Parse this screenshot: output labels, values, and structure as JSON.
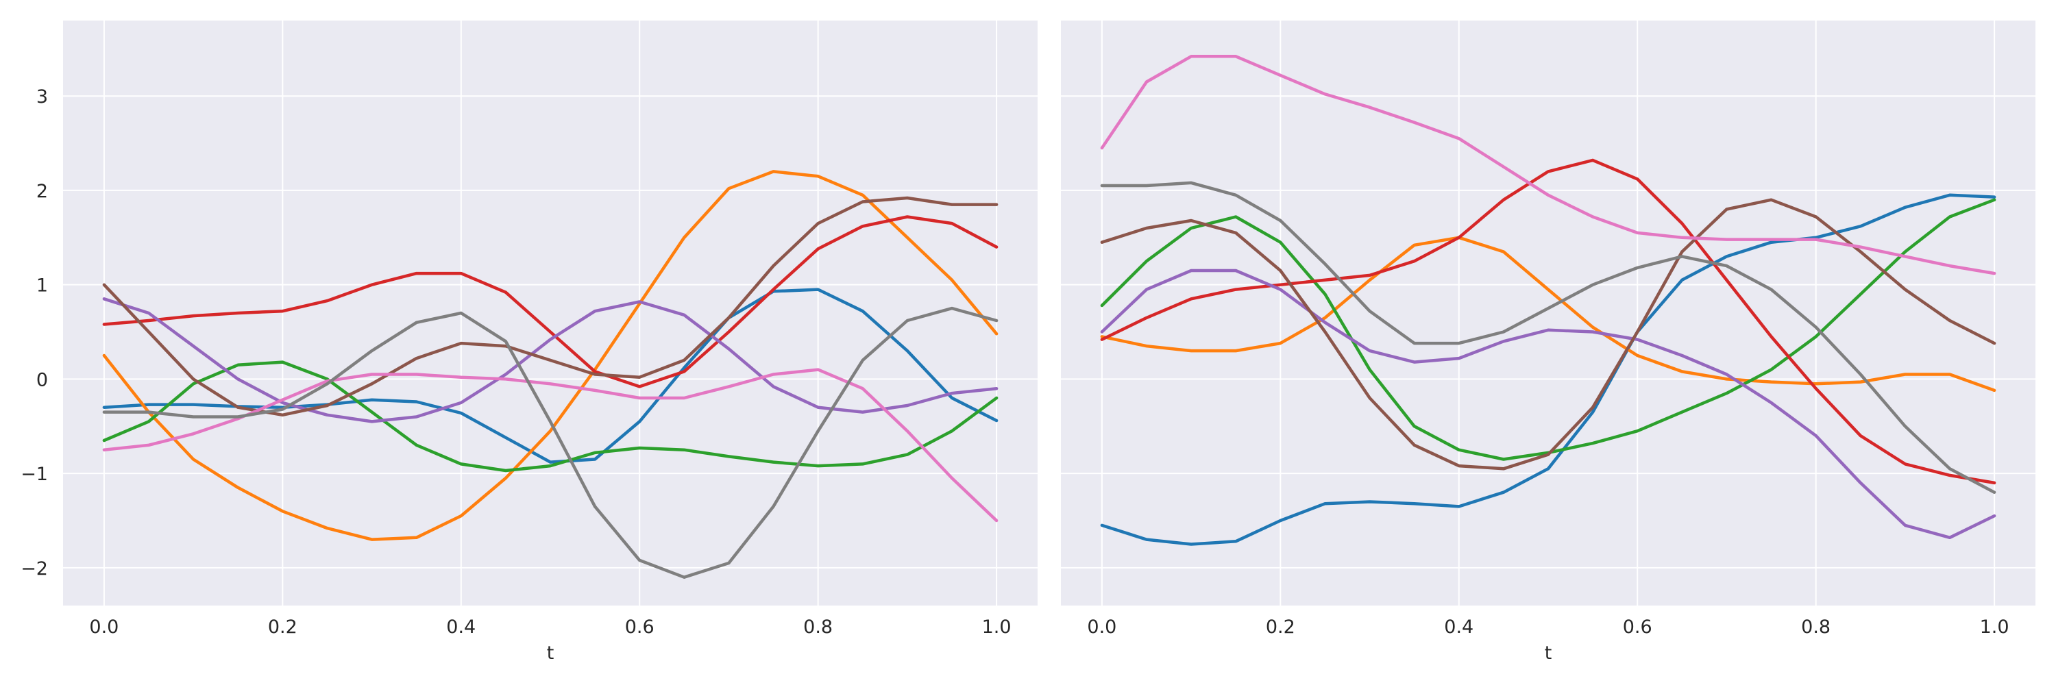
{
  "chart_data": [
    {
      "type": "line",
      "xlabel": "t",
      "ylabel": "",
      "xlim": [
        -0.046,
        1.046
      ],
      "ylim": [
        -2.4,
        3.8
      ],
      "xticks": [
        0.0,
        0.2,
        0.4,
        0.6,
        0.8,
        1.0
      ],
      "xtick_labels": [
        "0.0",
        "0.2",
        "0.4",
        "0.6",
        "0.8",
        "1.0"
      ],
      "yticks": [
        -2,
        -1,
        0,
        1,
        2,
        3
      ],
      "ytick_labels": [
        "−2",
        "−1",
        "0",
        "1",
        "2",
        "3"
      ],
      "grid": true,
      "background": "#eaeaf2",
      "series": [
        {
          "color": "#1f77b4",
          "x": [
            0.0,
            0.05,
            0.1,
            0.15,
            0.2,
            0.25,
            0.3,
            0.35,
            0.4,
            0.45,
            0.5,
            0.55,
            0.6,
            0.65,
            0.7,
            0.75,
            0.8,
            0.85,
            0.9,
            0.95,
            1.0
          ],
          "y": [
            -0.3,
            -0.27,
            -0.27,
            -0.29,
            -0.3,
            -0.27,
            -0.22,
            -0.24,
            -0.36,
            -0.62,
            -0.88,
            -0.85,
            -0.45,
            0.12,
            0.65,
            0.93,
            0.95,
            0.72,
            0.3,
            -0.2,
            -0.44
          ]
        },
        {
          "color": "#ff7f0e",
          "x": [
            0.0,
            0.05,
            0.1,
            0.15,
            0.2,
            0.25,
            0.3,
            0.35,
            0.4,
            0.45,
            0.5,
            0.55,
            0.6,
            0.65,
            0.7,
            0.75,
            0.8,
            0.85,
            0.9,
            0.95,
            1.0
          ],
          "y": [
            0.25,
            -0.35,
            -0.85,
            -1.15,
            -1.4,
            -1.58,
            -1.7,
            -1.68,
            -1.45,
            -1.05,
            -0.55,
            0.1,
            0.8,
            1.5,
            2.02,
            2.2,
            2.15,
            1.95,
            1.5,
            1.05,
            0.48
          ]
        },
        {
          "color": "#2ca02c",
          "x": [
            0.0,
            0.05,
            0.1,
            0.15,
            0.2,
            0.25,
            0.3,
            0.35,
            0.4,
            0.45,
            0.5,
            0.55,
            0.6,
            0.65,
            0.7,
            0.75,
            0.8,
            0.85,
            0.9,
            0.95,
            1.0
          ],
          "y": [
            -0.65,
            -0.45,
            -0.05,
            0.15,
            0.18,
            0.0,
            -0.35,
            -0.7,
            -0.9,
            -0.97,
            -0.92,
            -0.78,
            -0.73,
            -0.75,
            -0.82,
            -0.88,
            -0.92,
            -0.9,
            -0.8,
            -0.55,
            -0.2
          ]
        },
        {
          "color": "#d62728",
          "x": [
            0.0,
            0.05,
            0.1,
            0.15,
            0.2,
            0.25,
            0.3,
            0.35,
            0.4,
            0.45,
            0.5,
            0.55,
            0.6,
            0.65,
            0.7,
            0.75,
            0.8,
            0.85,
            0.9,
            0.95,
            1.0
          ],
          "y": [
            0.58,
            0.62,
            0.67,
            0.7,
            0.72,
            0.83,
            1.0,
            1.12,
            1.12,
            0.92,
            0.5,
            0.08,
            -0.08,
            0.08,
            0.5,
            0.95,
            1.38,
            1.62,
            1.72,
            1.65,
            1.4
          ]
        },
        {
          "color": "#9467bd",
          "x": [
            0.0,
            0.05,
            0.1,
            0.15,
            0.2,
            0.25,
            0.3,
            0.35,
            0.4,
            0.45,
            0.5,
            0.55,
            0.6,
            0.65,
            0.7,
            0.75,
            0.8,
            0.85,
            0.9,
            0.95,
            1.0
          ],
          "y": [
            0.85,
            0.7,
            0.35,
            0.0,
            -0.25,
            -0.38,
            -0.45,
            -0.4,
            -0.25,
            0.05,
            0.42,
            0.72,
            0.82,
            0.68,
            0.32,
            -0.08,
            -0.3,
            -0.35,
            -0.28,
            -0.15,
            -0.1
          ]
        },
        {
          "color": "#8c564b",
          "x": [
            0.0,
            0.05,
            0.1,
            0.15,
            0.2,
            0.25,
            0.3,
            0.35,
            0.4,
            0.45,
            0.5,
            0.55,
            0.6,
            0.65,
            0.7,
            0.75,
            0.8,
            0.85,
            0.9,
            0.95,
            1.0
          ],
          "y": [
            1.0,
            0.5,
            0.0,
            -0.3,
            -0.38,
            -0.28,
            -0.05,
            0.22,
            0.38,
            0.35,
            0.2,
            0.05,
            0.02,
            0.2,
            0.65,
            1.2,
            1.65,
            1.88,
            1.92,
            1.85,
            1.85
          ]
        },
        {
          "color": "#e377c2",
          "x": [
            0.0,
            0.05,
            0.1,
            0.15,
            0.2,
            0.25,
            0.3,
            0.35,
            0.4,
            0.45,
            0.5,
            0.55,
            0.6,
            0.65,
            0.7,
            0.75,
            0.8,
            0.85,
            0.9,
            0.95,
            1.0
          ],
          "y": [
            -0.75,
            -0.7,
            -0.58,
            -0.42,
            -0.22,
            -0.02,
            0.05,
            0.05,
            0.02,
            0.0,
            -0.05,
            -0.12,
            -0.2,
            -0.2,
            -0.08,
            0.05,
            0.1,
            -0.1,
            -0.55,
            -1.05,
            -1.5
          ]
        },
        {
          "color": "#7f7f7f",
          "x": [
            0.0,
            0.05,
            0.1,
            0.15,
            0.2,
            0.25,
            0.3,
            0.35,
            0.4,
            0.45,
            0.5,
            0.55,
            0.6,
            0.65,
            0.7,
            0.75,
            0.8,
            0.85,
            0.9,
            0.95,
            1.0
          ],
          "y": [
            -0.35,
            -0.35,
            -0.4,
            -0.4,
            -0.32,
            -0.05,
            0.3,
            0.6,
            0.7,
            0.4,
            -0.45,
            -1.35,
            -1.92,
            -2.1,
            -1.95,
            -1.35,
            -0.55,
            0.2,
            0.62,
            0.75,
            0.62
          ]
        }
      ]
    },
    {
      "type": "line",
      "xlabel": "t",
      "ylabel": "",
      "xlim": [
        -0.046,
        1.046
      ],
      "ylim": [
        -2.4,
        3.8
      ],
      "xticks": [
        0.0,
        0.2,
        0.4,
        0.6,
        0.8,
        1.0
      ],
      "xtick_labels": [
        "0.0",
        "0.2",
        "0.4",
        "0.6",
        "0.8",
        "1.0"
      ],
      "yticks": [
        -2,
        -1,
        0,
        1,
        2,
        3
      ],
      "grid": true,
      "background": "#eaeaf2",
      "series": [
        {
          "color": "#1f77b4",
          "x": [
            0.0,
            0.05,
            0.1,
            0.15,
            0.2,
            0.25,
            0.3,
            0.35,
            0.4,
            0.45,
            0.5,
            0.55,
            0.6,
            0.65,
            0.7,
            0.75,
            0.8,
            0.85,
            0.9,
            0.95,
            1.0
          ],
          "y": [
            -1.55,
            -1.7,
            -1.75,
            -1.72,
            -1.5,
            -1.32,
            -1.3,
            -1.32,
            -1.35,
            -1.2,
            -0.95,
            -0.35,
            0.5,
            1.05,
            1.3,
            1.45,
            1.5,
            1.62,
            1.82,
            1.95,
            1.93
          ]
        },
        {
          "color": "#ff7f0e",
          "x": [
            0.0,
            0.05,
            0.1,
            0.15,
            0.2,
            0.25,
            0.3,
            0.35,
            0.4,
            0.45,
            0.5,
            0.55,
            0.6,
            0.65,
            0.7,
            0.75,
            0.8,
            0.85,
            0.9,
            0.95,
            1.0
          ],
          "y": [
            0.45,
            0.35,
            0.3,
            0.3,
            0.38,
            0.65,
            1.05,
            1.42,
            1.5,
            1.35,
            0.95,
            0.55,
            0.25,
            0.08,
            0.0,
            -0.03,
            -0.05,
            -0.03,
            0.05,
            0.05,
            -0.12
          ]
        },
        {
          "color": "#2ca02c",
          "x": [
            0.0,
            0.05,
            0.1,
            0.15,
            0.2,
            0.25,
            0.3,
            0.35,
            0.4,
            0.45,
            0.5,
            0.55,
            0.6,
            0.65,
            0.7,
            0.75,
            0.8,
            0.85,
            0.9,
            0.95,
            1.0
          ],
          "y": [
            0.78,
            1.25,
            1.6,
            1.72,
            1.45,
            0.9,
            0.1,
            -0.5,
            -0.75,
            -0.85,
            -0.78,
            -0.68,
            -0.55,
            -0.35,
            -0.15,
            0.1,
            0.45,
            0.9,
            1.35,
            1.72,
            1.9
          ]
        },
        {
          "color": "#d62728",
          "x": [
            0.0,
            0.05,
            0.1,
            0.15,
            0.2,
            0.25,
            0.3,
            0.35,
            0.4,
            0.45,
            0.5,
            0.55,
            0.6,
            0.65,
            0.7,
            0.75,
            0.8,
            0.85,
            0.9,
            0.95,
            1.0
          ],
          "y": [
            0.42,
            0.65,
            0.85,
            0.95,
            1.0,
            1.05,
            1.1,
            1.25,
            1.5,
            1.9,
            2.2,
            2.32,
            2.12,
            1.65,
            1.05,
            0.45,
            -0.1,
            -0.6,
            -0.9,
            -1.02,
            -1.1
          ]
        },
        {
          "color": "#9467bd",
          "x": [
            0.0,
            0.05,
            0.1,
            0.15,
            0.2,
            0.25,
            0.3,
            0.35,
            0.4,
            0.45,
            0.5,
            0.55,
            0.6,
            0.65,
            0.7,
            0.75,
            0.8,
            0.85,
            0.9,
            0.95,
            1.0
          ],
          "y": [
            0.5,
            0.95,
            1.15,
            1.15,
            0.95,
            0.6,
            0.3,
            0.18,
            0.22,
            0.4,
            0.52,
            0.5,
            0.42,
            0.25,
            0.05,
            -0.25,
            -0.6,
            -1.1,
            -1.55,
            -1.68,
            -1.45
          ]
        },
        {
          "color": "#8c564b",
          "x": [
            0.0,
            0.05,
            0.1,
            0.15,
            0.2,
            0.25,
            0.3,
            0.35,
            0.4,
            0.45,
            0.5,
            0.55,
            0.6,
            0.65,
            0.7,
            0.75,
            0.8,
            0.85,
            0.9,
            0.95,
            1.0
          ],
          "y": [
            1.45,
            1.6,
            1.68,
            1.55,
            1.15,
            0.5,
            -0.2,
            -0.7,
            -0.92,
            -0.95,
            -0.8,
            -0.3,
            0.5,
            1.35,
            1.8,
            1.9,
            1.72,
            1.35,
            0.95,
            0.62,
            0.38
          ]
        },
        {
          "color": "#e377c2",
          "x": [
            0.0,
            0.05,
            0.1,
            0.15,
            0.2,
            0.25,
            0.3,
            0.35,
            0.4,
            0.45,
            0.5,
            0.55,
            0.6,
            0.65,
            0.7,
            0.75,
            0.8,
            0.85,
            0.9,
            0.95,
            1.0
          ],
          "y": [
            2.45,
            3.15,
            3.42,
            3.42,
            3.22,
            3.02,
            2.88,
            2.72,
            2.55,
            2.25,
            1.95,
            1.72,
            1.55,
            1.5,
            1.48,
            1.48,
            1.48,
            1.4,
            1.3,
            1.2,
            1.12
          ]
        },
        {
          "color": "#7f7f7f",
          "x": [
            0.0,
            0.05,
            0.1,
            0.15,
            0.2,
            0.25,
            0.3,
            0.35,
            0.4,
            0.45,
            0.5,
            0.55,
            0.6,
            0.65,
            0.7,
            0.75,
            0.8,
            0.85,
            0.9,
            0.95,
            1.0
          ],
          "y": [
            2.05,
            2.05,
            2.08,
            1.95,
            1.68,
            1.22,
            0.72,
            0.38,
            0.38,
            0.5,
            0.75,
            1.0,
            1.18,
            1.3,
            1.2,
            0.95,
            0.55,
            0.05,
            -0.5,
            -0.95,
            -1.2
          ]
        }
      ]
    }
  ]
}
